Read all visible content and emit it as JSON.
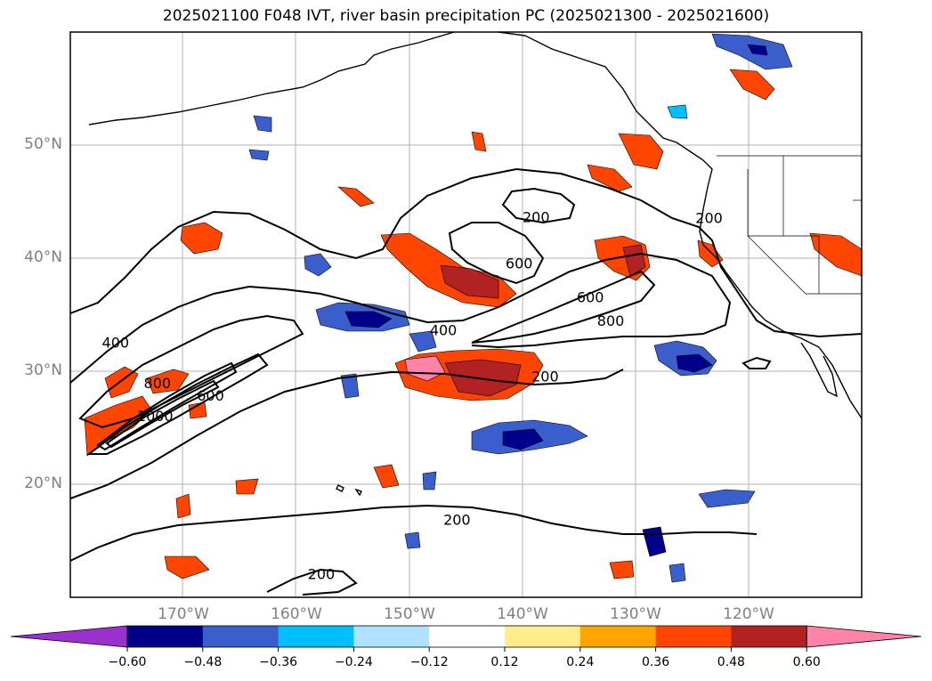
{
  "title": "2025021100 F048 IVT, river basin precipitation PC (2025021300 - 2025021600)",
  "map": {
    "lon_range": [
      -180,
      -110
    ],
    "lat_range": [
      10,
      60
    ],
    "lat_labels": [
      {
        "lat": 50,
        "text": "50°N"
      },
      {
        "lat": 40,
        "text": "40°N"
      },
      {
        "lat": 30,
        "text": "30°N"
      },
      {
        "lat": 20,
        "text": "20°N"
      }
    ],
    "lon_labels": [
      {
        "lon": -170,
        "text": "170°W"
      },
      {
        "lon": -160,
        "text": "160°W"
      },
      {
        "lon": -150,
        "text": "150°W"
      },
      {
        "lon": -140,
        "text": "140°W"
      },
      {
        "lon": -130,
        "text": "130°W"
      },
      {
        "lon": -120,
        "text": "120°W"
      }
    ],
    "contour_labels": [
      {
        "text": "200",
        "lon": -138.8,
        "lat": 43.6
      },
      {
        "text": "200",
        "lon": -123.5,
        "lat": 43.5
      },
      {
        "text": "600",
        "lon": -140.3,
        "lat": 39.5
      },
      {
        "text": "600",
        "lon": -134.0,
        "lat": 36.5
      },
      {
        "text": "800",
        "lon": -132.2,
        "lat": 34.4
      },
      {
        "text": "400",
        "lon": -147.0,
        "lat": 33.6
      },
      {
        "text": "400",
        "lon": -176.0,
        "lat": 32.5
      },
      {
        "text": "200",
        "lon": -138.0,
        "lat": 29.5
      },
      {
        "text": "800",
        "lon": -172.3,
        "lat": 28.9
      },
      {
        "text": "1000",
        "lon": -172.5,
        "lat": 26.0
      },
      {
        "text": "600",
        "lon": -167.6,
        "lat": 27.8
      },
      {
        "text": "200",
        "lon": -145.8,
        "lat": 16.8
      },
      {
        "text": "200",
        "lon": -157.8,
        "lat": 12.0
      }
    ]
  },
  "colorbar": {
    "colors": [
      "#9932CC",
      "#00008B",
      "#3A5FCD",
      "#00BFFF",
      "#B0E2FF",
      "#FFFFFF",
      "#FFEC8B",
      "#FFA500",
      "#FF4500",
      "#B22222",
      "#FF83A8"
    ],
    "ticks": [
      "−0.60",
      "−0.48",
      "−0.36",
      "−0.24",
      "−0.12",
      "0.12",
      "0.24",
      "0.36",
      "0.48",
      "0.60"
    ]
  }
}
